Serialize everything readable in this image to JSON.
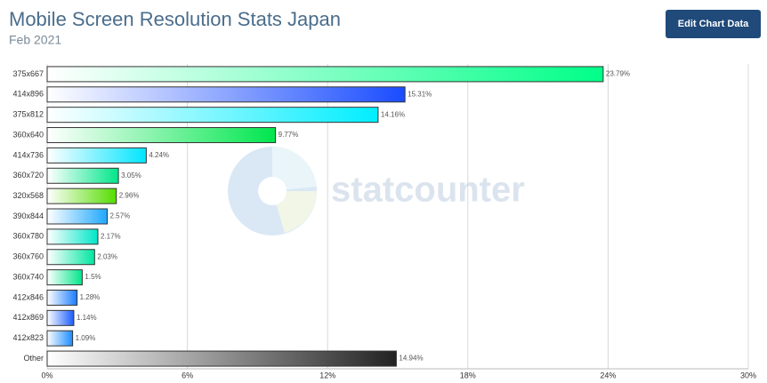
{
  "chart_data": {
    "type": "hbar",
    "title": "Mobile Screen Resolution Stats Japan",
    "subtitle": "Feb 2021",
    "button": "Edit Chart Data",
    "watermark": "statcounter",
    "categories": [
      "375x667",
      "414x896",
      "375x812",
      "360x640",
      "414x736",
      "360x720",
      "320x568",
      "390x844",
      "360x780",
      "360x760",
      "360x740",
      "412x846",
      "412x869",
      "412x823",
      "Other"
    ],
    "values": [
      23.79,
      15.31,
      14.16,
      9.77,
      4.24,
      3.05,
      2.96,
      2.57,
      2.17,
      2.03,
      1.5,
      1.28,
      1.14,
      1.09,
      14.94
    ],
    "value_labels": [
      "23.79%",
      "15.31%",
      "14.16%",
      "9.77%",
      "4.24%",
      "3.05%",
      "2.96%",
      "2.57%",
      "2.17%",
      "2.03%",
      "1.5%",
      "1.28%",
      "1.14%",
      "1.09%",
      "14.94%"
    ],
    "colors": [
      "#00ff88",
      "#1a4cff",
      "#00eeff",
      "#00e64d",
      "#00e5ff",
      "#00e68a",
      "#55dd00",
      "#1fa8ff",
      "#00e6c8",
      "#00e6a0",
      "#00e68a",
      "#1a7cff",
      "#1a5cff",
      "#1a8cff",
      "#222222"
    ],
    "xlim": [
      0,
      30
    ],
    "xticks": [
      {
        "value": 0,
        "label": "0%"
      },
      {
        "value": 6,
        "label": "6%"
      },
      {
        "value": 12,
        "label": "12%"
      },
      {
        "value": 18,
        "label": "18%"
      },
      {
        "value": 24,
        "label": "24%"
      },
      {
        "value": 30,
        "label": "30%"
      }
    ],
    "grid": true
  }
}
